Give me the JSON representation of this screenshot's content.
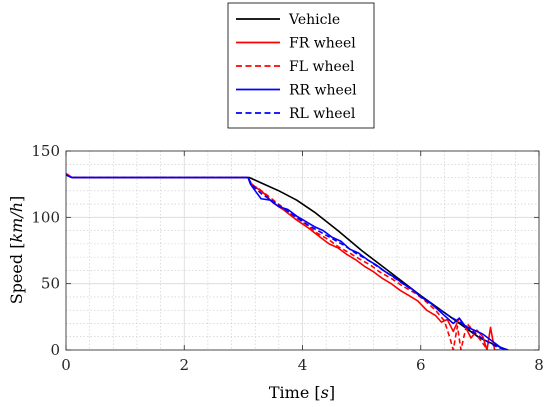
{
  "chart_data": {
    "type": "line",
    "title": "",
    "xlabel": "Time [s]",
    "xlabel_text": "Time ",
    "xlabel_unit": "s",
    "ylabel": "Speed [km/h]",
    "ylabel_text": "Speed ",
    "ylabel_unit": "km/h",
    "xlim": [
      0,
      8
    ],
    "ylim": [
      0,
      150
    ],
    "xticks": [
      0,
      2,
      4,
      6,
      8
    ],
    "yticks": [
      0,
      50,
      100,
      150
    ],
    "xtick_labels": [
      "0",
      "2",
      "4",
      "6",
      "8"
    ],
    "ytick_labels": [
      "0",
      "50",
      "100",
      "150"
    ],
    "grid": true,
    "minor_grid": true,
    "legend_position": "top-center (outside, above axes)",
    "series": [
      {
        "name": "Vehicle",
        "color": "#000000",
        "dash": "solid",
        "x": [
          0,
          0.1,
          3.1,
          3.3,
          3.6,
          3.9,
          4.2,
          4.6,
          5.0,
          5.5,
          6.0,
          6.5,
          7.0,
          7.45
        ],
        "y": [
          132,
          130,
          130,
          126,
          120,
          113,
          104,
          90,
          75,
          58,
          41,
          25,
          9,
          0
        ]
      },
      {
        "name": "FR wheel",
        "color": "#ff0000",
        "dash": "solid",
        "x": [
          0,
          0.1,
          3.08,
          3.12,
          3.2,
          3.35,
          3.5,
          3.7,
          3.9,
          4.1,
          4.3,
          4.45,
          4.6,
          4.75,
          4.9,
          5.05,
          5.2,
          5.35,
          5.5,
          5.65,
          5.8,
          5.95,
          6.1,
          6.25,
          6.35,
          6.45,
          6.55,
          6.65,
          6.75,
          6.85,
          6.95,
          7.05,
          7.12,
          7.18,
          7.25,
          7.35
        ],
        "y": [
          133,
          130,
          130,
          126,
          123,
          118,
          111,
          105,
          98,
          92,
          85,
          80,
          77,
          72,
          68,
          63,
          59,
          54,
          50,
          45,
          41,
          37,
          30,
          26,
          21,
          23,
          14,
          24,
          18,
          9,
          15,
          10,
          0,
          17,
          0,
          0
        ]
      },
      {
        "name": "FL wheel",
        "color": "#ff0000",
        "dash": "dashed",
        "x": [
          0,
          0.1,
          3.08,
          3.12,
          3.25,
          3.45,
          3.65,
          3.85,
          4.05,
          4.25,
          4.45,
          4.6,
          4.8,
          4.95,
          5.15,
          5.3,
          5.5,
          5.7,
          5.9,
          6.05,
          6.25,
          6.4,
          6.5,
          6.55,
          6.62,
          6.68,
          6.78,
          6.9,
          7.0,
          7.1
        ],
        "y": [
          133,
          130,
          130,
          125,
          122,
          115,
          108,
          101,
          95,
          88,
          83,
          78,
          73,
          69,
          64,
          59,
          54,
          48,
          43,
          38,
          30,
          22,
          8,
          0,
          18,
          0,
          20,
          14,
          8,
          2
        ]
      },
      {
        "name": "RR wheel",
        "color": "#0000ff",
        "dash": "solid",
        "x": [
          0,
          0.1,
          3.08,
          3.12,
          3.2,
          3.3,
          3.45,
          3.6,
          3.75,
          3.9,
          4.05,
          4.2,
          4.35,
          4.5,
          4.65,
          4.8,
          4.95,
          5.1,
          5.25,
          5.4,
          5.55,
          5.7,
          5.85,
          6.0,
          6.15,
          6.3,
          6.45,
          6.55,
          6.65,
          6.75,
          6.9,
          7.05,
          7.2,
          7.35,
          7.48
        ],
        "y": [
          132,
          130,
          130,
          125,
          120,
          114,
          113,
          108,
          106,
          101,
          97,
          93,
          90,
          85,
          82,
          76,
          73,
          68,
          64,
          59,
          55,
          50,
          46,
          40,
          36,
          30,
          24,
          20,
          24,
          18,
          15,
          12,
          7,
          2,
          0
        ]
      },
      {
        "name": "RL wheel",
        "color": "#0000ff",
        "dash": "dashed",
        "x": [
          0,
          0.1,
          3.08,
          3.15,
          3.3,
          3.5,
          3.7,
          3.9,
          4.1,
          4.3,
          4.5,
          4.7,
          4.9,
          5.1,
          5.3,
          5.5,
          5.7,
          5.9,
          6.1,
          6.3,
          6.5,
          6.7,
          6.9,
          7.1,
          7.3,
          7.45
        ],
        "y": [
          132,
          130,
          130,
          124,
          118,
          112,
          106,
          100,
          94,
          89,
          84,
          79,
          73,
          68,
          62,
          56,
          50,
          44,
          37,
          31,
          25,
          20,
          13,
          7,
          2,
          0
        ]
      }
    ]
  }
}
